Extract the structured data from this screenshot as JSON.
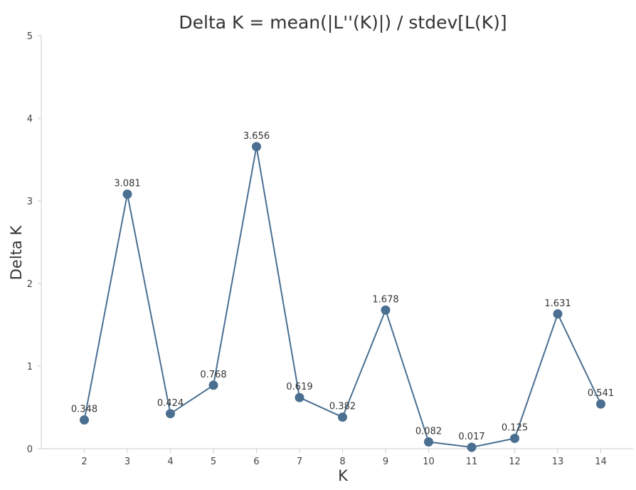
{
  "chart_data": {
    "type": "line",
    "title": "Delta K = mean(|L''(K)|) / stdev[L(K)]",
    "xlabel": "K",
    "ylabel": "Delta K",
    "x": [
      2,
      3,
      4,
      5,
      6,
      7,
      8,
      9,
      10,
      11,
      12,
      13,
      14
    ],
    "series": [
      {
        "values": [
          0.348,
          3.081,
          0.424,
          0.768,
          3.656,
          0.619,
          0.382,
          1.678,
          0.082,
          0.017,
          0.125,
          1.631,
          0.541
        ],
        "labels": [
          "0.348",
          "3.081",
          "0.424",
          "0.768",
          "3.656",
          "0.619",
          "0.382",
          "1.678",
          "0.082",
          "0.017",
          "0.125",
          "1.631",
          "0.541"
        ]
      }
    ],
    "ylim": [
      0,
      5
    ],
    "yticks": [
      "0",
      "1",
      "2",
      "3",
      "4",
      "5"
    ],
    "xticks": [
      "2",
      "3",
      "4",
      "5",
      "6",
      "7",
      "8",
      "9",
      "10",
      "11",
      "12",
      "13",
      "14"
    ],
    "grid": false,
    "legend": "none",
    "colors": {
      "series": "#4a6f91",
      "axis": "#cccccc",
      "text": "#333333"
    }
  }
}
